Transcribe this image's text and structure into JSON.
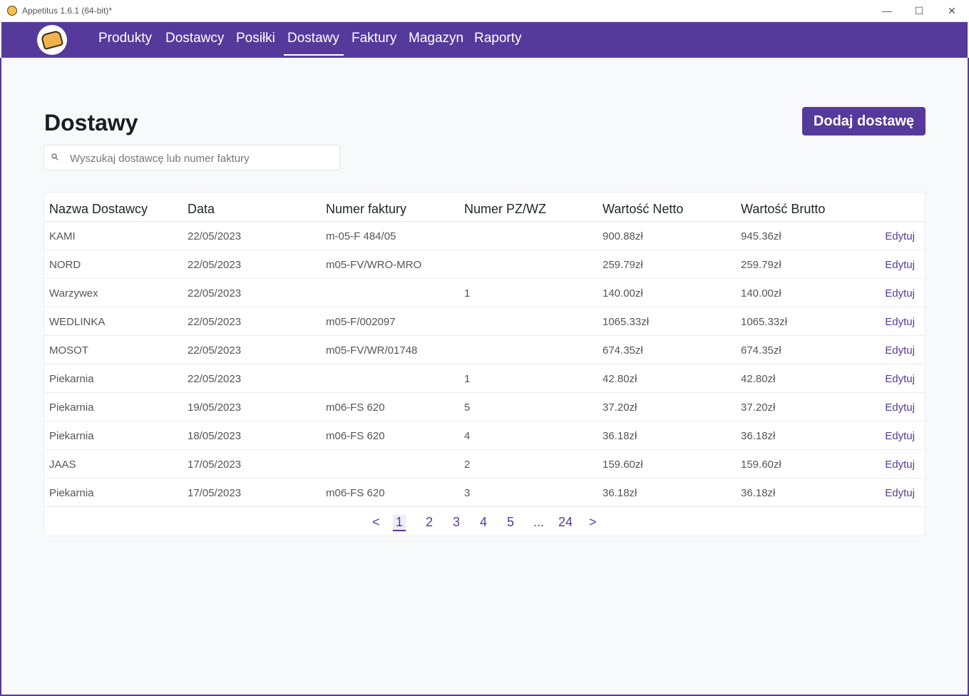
{
  "window": {
    "title": "Appetitus 1.6.1 (64-bit)*"
  },
  "nav": {
    "items": [
      "Produkty",
      "Dostawcy",
      "Posiłki",
      "Dostawy",
      "Faktury",
      "Magazyn",
      "Raporty"
    ],
    "active": "Dostawy"
  },
  "page": {
    "title": "Dostawy",
    "add_button": "Dodaj dostawę",
    "search_placeholder": "Wyszukaj dostawcę lub numer faktury"
  },
  "table": {
    "headers": [
      "Nazwa Dostawcy",
      "Data",
      "Numer faktury",
      "Numer PZ/WZ",
      "Wartość Netto",
      "Wartość Brutto"
    ],
    "edit_label": "Edytuj",
    "rows": [
      {
        "supplier": "KAMI",
        "date": "22/05/2023",
        "invoice": "m-05-F 484/05",
        "pz": "",
        "net": "900.88zł",
        "gross": "945.36zł"
      },
      {
        "supplier": "NORD",
        "date": "22/05/2023",
        "invoice": "m05-FV/WRO-MRO",
        "pz": "",
        "net": "259.79zł",
        "gross": "259.79zł"
      },
      {
        "supplier": "Warzywex",
        "date": "22/05/2023",
        "invoice": "",
        "pz": "1",
        "net": "140.00zł",
        "gross": "140.00zł"
      },
      {
        "supplier": "WEDLINKA",
        "date": "22/05/2023",
        "invoice": "m05-F/002097",
        "pz": "",
        "net": "1065.33zł",
        "gross": "1065.33zł"
      },
      {
        "supplier": "MOSOT",
        "date": "22/05/2023",
        "invoice": "m05-FV/WR/01748",
        "pz": "",
        "net": "674.35zł",
        "gross": "674.35zł"
      },
      {
        "supplier": "Piekarnia",
        "date": "22/05/2023",
        "invoice": "",
        "pz": "1",
        "net": "42.80zł",
        "gross": "42.80zł"
      },
      {
        "supplier": "Piekarnia",
        "date": "19/05/2023",
        "invoice": "m06-FS 620",
        "pz": "5",
        "net": "37.20zł",
        "gross": "37.20zł"
      },
      {
        "supplier": "Piekarnia",
        "date": "18/05/2023",
        "invoice": "m06-FS 620",
        "pz": "4",
        "net": "36.18zł",
        "gross": "36.18zł"
      },
      {
        "supplier": "JAAS",
        "date": "17/05/2023",
        "invoice": "",
        "pz": "2",
        "net": "159.60zł",
        "gross": "159.60zł"
      },
      {
        "supplier": "Piekarnia",
        "date": "17/05/2023",
        "invoice": "m06-FS 620",
        "pz": "3",
        "net": "36.18zł",
        "gross": "36.18zł"
      }
    ]
  },
  "pagination": {
    "prev": "<",
    "next": ">",
    "pages": [
      "1",
      "2",
      "3",
      "4",
      "5",
      "...",
      "24"
    ],
    "current": "1"
  },
  "colors": {
    "brand": "#553a9c"
  }
}
